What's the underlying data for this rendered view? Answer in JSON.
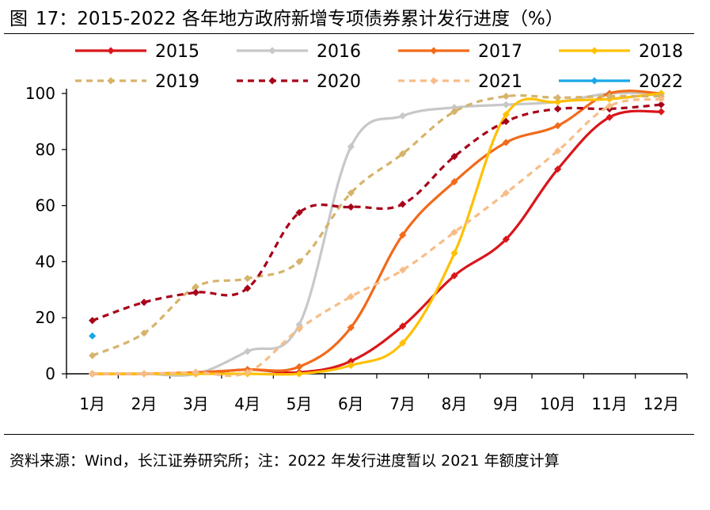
{
  "figure": {
    "label": "图",
    "number": "17：",
    "title": "2015-2022 各年地方政府新增专项债券累计发行进度（%）"
  },
  "source_note": "资料来源：Wind，长江证券研究所；注：2022 年发行进度暂以 2021 年额度计算",
  "chart_data": {
    "type": "line",
    "title": "2015-2022 各年地方政府新增专项债券累计发行进度（%）",
    "xlabel": "",
    "ylabel": "",
    "categories": [
      "1月",
      "2月",
      "3月",
      "4月",
      "5月",
      "6月",
      "7月",
      "8月",
      "9月",
      "10月",
      "11月",
      "12月"
    ],
    "ylim": [
      0,
      100
    ],
    "yticks": [
      0,
      20,
      40,
      60,
      80,
      100
    ],
    "legend_position": "top",
    "series": [
      {
        "name": "2015",
        "color": "#d9161b",
        "dash": "solid",
        "values": [
          0,
          0,
          0,
          1.5,
          0.5,
          4.5,
          17,
          35,
          48,
          73,
          91.5,
          93.5
        ]
      },
      {
        "name": "2016",
        "color": "#c8c8c8",
        "dash": "solid",
        "values": [
          0,
          0,
          0,
          8,
          17.5,
          81,
          92,
          95,
          96,
          97,
          100,
          100
        ]
      },
      {
        "name": "2017",
        "color": "#f26a1b",
        "dash": "solid",
        "values": [
          0,
          0,
          0.5,
          1.5,
          2.5,
          16.5,
          49.5,
          68.5,
          82.5,
          88.5,
          100,
          100
        ]
      },
      {
        "name": "2018",
        "color": "#ffc000",
        "dash": "solid",
        "values": [
          0,
          0,
          0,
          0,
          0,
          3,
          11,
          43,
          92.5,
          97,
          98,
          100
        ]
      },
      {
        "name": "2019",
        "color": "#d6b36b",
        "dash": "dashed",
        "values": [
          6.5,
          14.5,
          31,
          34,
          40,
          64.5,
          78.5,
          93.5,
          99,
          98.5,
          99,
          99
        ]
      },
      {
        "name": "2020",
        "color": "#a8001a",
        "dash": "dashed",
        "values": [
          19,
          25.5,
          29,
          30.5,
          57.5,
          59.5,
          60.5,
          77.5,
          90,
          94.5,
          94.5,
          96
        ]
      },
      {
        "name": "2021",
        "color": "#f7bd87",
        "dash": "dashed",
        "values": [
          0,
          0,
          0.5,
          0.5,
          16,
          27.5,
          37,
          50.5,
          64.5,
          79.5,
          95.5,
          98
        ]
      },
      {
        "name": "2022",
        "color": "#18a7e8",
        "dash": "solid",
        "values": [
          13.5,
          null,
          null,
          null,
          null,
          null,
          null,
          null,
          null,
          null,
          null,
          null
        ]
      }
    ]
  }
}
